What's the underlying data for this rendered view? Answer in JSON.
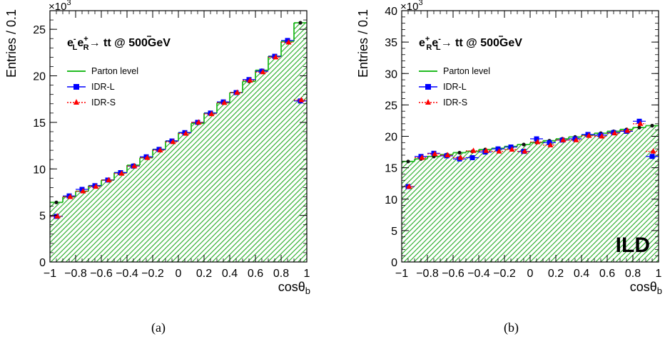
{
  "captions": [
    "(a)",
    "(b)"
  ],
  "chart_data": [
    {
      "type": "bar",
      "panel": "(a)",
      "process": {
        "beam1": "e",
        "beam1_sub": "L",
        "beam1_sup": "-",
        "beam2": "e",
        "beam2_sub": "R",
        "beam2_sup": "+",
        "arrow": "→ t",
        "final": "t",
        "energy": " @ 500GeV"
      },
      "xlabel": "cosθ",
      "xlabel_sub": "b",
      "ylabel": "Entries / 0.1",
      "y_exponent_base": "×10",
      "y_exponent": "3",
      "xlim": [
        -1,
        1
      ],
      "ylim": [
        0,
        27
      ],
      "xticks": [
        -1,
        -0.8,
        -0.6,
        -0.4,
        -0.2,
        0,
        0.2,
        0.4,
        0.6,
        0.8,
        1
      ],
      "xtick_labels": [
        "−1",
        "−0.8",
        "−0.6",
        "−0.4",
        "−0.2",
        "0",
        "0.2",
        "0.4",
        "0.6",
        "0.8",
        "1"
      ],
      "yticks": [
        0,
        5,
        10,
        15,
        20,
        25
      ],
      "ytick_labels": [
        "0",
        "5",
        "10",
        "15",
        "20",
        "25"
      ],
      "bin_centers": [
        -0.95,
        -0.85,
        -0.75,
        -0.65,
        -0.55,
        -0.45,
        -0.35,
        -0.25,
        -0.15,
        -0.05,
        0.05,
        0.15,
        0.25,
        0.35,
        0.45,
        0.55,
        0.65,
        0.75,
        0.85,
        0.95
      ],
      "series": [
        {
          "name": "Parton level",
          "style": "hist",
          "color": "#22bb22",
          "values": [
            6.4,
            7.0,
            7.6,
            8.2,
            8.8,
            9.6,
            10.4,
            11.2,
            12.1,
            13.0,
            13.9,
            14.9,
            16.0,
            17.1,
            18.2,
            19.4,
            20.6,
            22.1,
            23.7,
            25.7
          ]
        },
        {
          "name": "IDR-L",
          "style": "points",
          "color": "#0000ff",
          "values": [
            4.9,
            7.1,
            7.8,
            8.2,
            8.8,
            9.6,
            10.3,
            11.3,
            12.1,
            13.0,
            13.9,
            15.0,
            16.0,
            17.2,
            18.2,
            19.6,
            20.5,
            22.1,
            23.8,
            17.3
          ]
        },
        {
          "name": "IDR-S",
          "style": "points",
          "color": "#ff0000",
          "values": [
            4.9,
            7.0,
            7.6,
            8.1,
            8.8,
            9.5,
            10.3,
            11.2,
            12.0,
            12.9,
            13.8,
            15.0,
            15.9,
            17.1,
            18.2,
            19.5,
            20.4,
            22.0,
            23.6,
            17.4
          ]
        }
      ]
    },
    {
      "type": "bar",
      "panel": "(b)",
      "process": {
        "beam1": "e",
        "beam1_sub": "R",
        "beam1_sup": "+",
        "beam2": "e",
        "beam2_sub": "L",
        "beam2_sup": "-",
        "arrow": "→ t",
        "final": "t",
        "energy": " @ 500GeV"
      },
      "xlabel": "cosθ",
      "xlabel_sub": "b",
      "ylabel": "Entries / 0.1",
      "y_exponent_base": "×10",
      "y_exponent": "3",
      "watermark": "ILD",
      "xlim": [
        -1,
        1
      ],
      "ylim": [
        0,
        40
      ],
      "xticks": [
        -1,
        -0.8,
        -0.6,
        -0.4,
        -0.2,
        0,
        0.2,
        0.4,
        0.6,
        0.8,
        1
      ],
      "xtick_labels": [
        "−1",
        "−0.8",
        "−0.6",
        "−0.4",
        "−0.2",
        "0",
        "0.2",
        "0.4",
        "0.6",
        "0.8",
        "1"
      ],
      "yticks": [
        0,
        5,
        10,
        15,
        20,
        25,
        30,
        35,
        40
      ],
      "ytick_labels": [
        "0",
        "5",
        "10",
        "15",
        "20",
        "25",
        "30",
        "35",
        "40"
      ],
      "bin_centers": [
        -0.95,
        -0.85,
        -0.75,
        -0.65,
        -0.55,
        -0.45,
        -0.35,
        -0.25,
        -0.15,
        -0.05,
        0.05,
        0.15,
        0.25,
        0.35,
        0.45,
        0.55,
        0.65,
        0.75,
        0.85,
        0.95
      ],
      "series": [
        {
          "name": "Parton level",
          "style": "hist",
          "color": "#22bb22",
          "values": [
            16.0,
            16.4,
            16.8,
            17.1,
            17.4,
            17.6,
            17.9,
            18.1,
            18.4,
            18.7,
            19.0,
            19.3,
            19.6,
            19.9,
            20.2,
            20.5,
            20.8,
            21.1,
            21.4,
            21.7
          ]
        },
        {
          "name": "IDR-L",
          "style": "points",
          "color": "#0000ff",
          "values": [
            12.0,
            16.8,
            17.3,
            16.9,
            16.4,
            16.6,
            17.5,
            18.0,
            18.3,
            17.6,
            19.6,
            19.0,
            19.4,
            19.6,
            20.3,
            20.2,
            20.6,
            20.8,
            22.4,
            16.8
          ]
        },
        {
          "name": "IDR-S",
          "style": "points",
          "color": "#ff0000",
          "values": [
            12.0,
            16.6,
            17.2,
            17.0,
            16.6,
            17.7,
            17.7,
            17.6,
            17.9,
            17.6,
            19.1,
            18.6,
            19.4,
            19.4,
            20.1,
            20.0,
            20.5,
            20.9,
            22.0,
            17.6
          ]
        }
      ]
    }
  ]
}
